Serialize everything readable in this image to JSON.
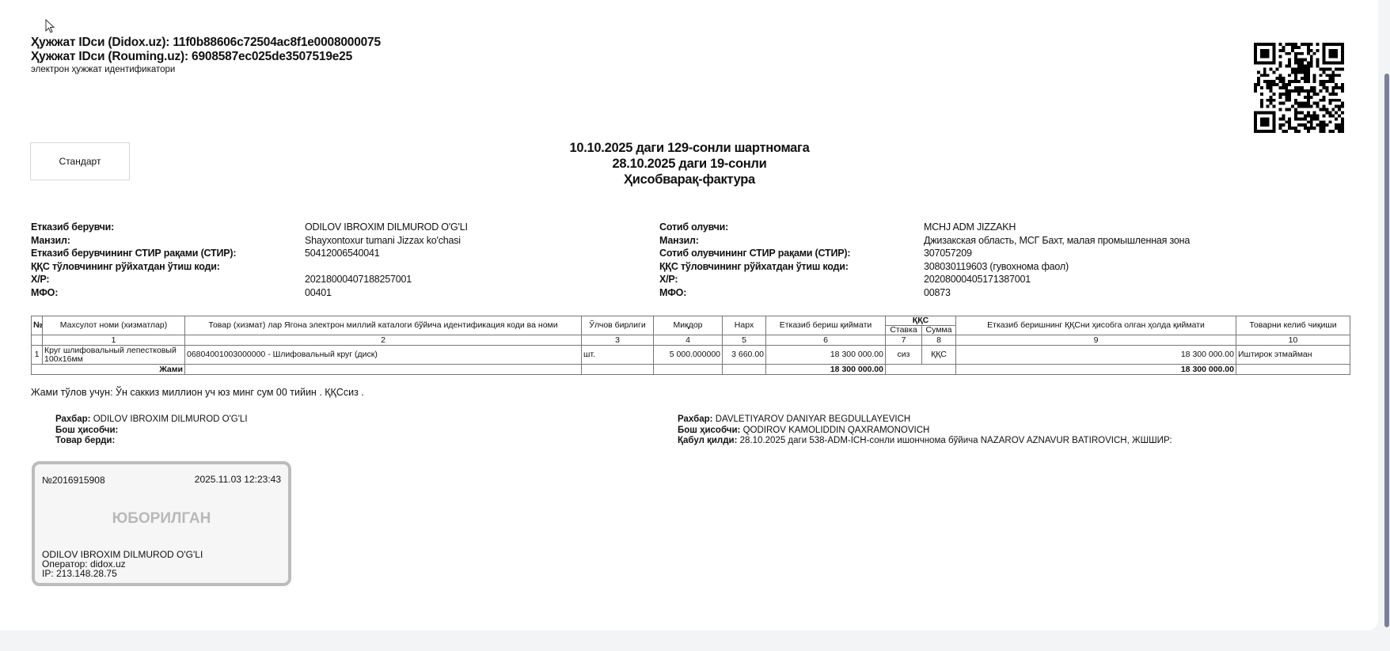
{
  "header": {
    "didox_id": "Ҳужжат IDси (Didox.uz): 11f0b88606c72504ac8f1e0008000075",
    "rouming_id": "Ҳужжат IDси (Rouming.uz): 6908587ec025de3507519e25",
    "subtitle": "электрон ҳужжат идентификатори"
  },
  "standard_button": "Стандарт",
  "title": {
    "line1": "10.10.2025 даги 129-сонли шартномага",
    "line2": "28.10.2025 даги 19-сонли",
    "line3": "Ҳисобварақ-фактура"
  },
  "seller": {
    "rows": [
      {
        "label": "Етказиб берувчи:",
        "value": "ODILOV IBROXIM DILMUROD O'G'LI"
      },
      {
        "label": "Манзил:",
        "value": "Shayxontoxur tumani Jizzax ko'chasi"
      },
      {
        "label": "Етказиб берувчининг СТИР рақами  (СТИР):",
        "value": "50412006540041"
      },
      {
        "label": "ҚҚС тўловчининг рўйхатдан ўтиш коди:",
        "value": ""
      },
      {
        "label": "Х/Р:",
        "value": "20218000407188257001"
      },
      {
        "label": "МФО:",
        "value": "00401"
      }
    ]
  },
  "buyer": {
    "rows": [
      {
        "label": "Сотиб олувчи:",
        "value": "MCHJ ADM JIZZAKH"
      },
      {
        "label": "Манзил:",
        "value": "Джизакская область, МСГ Бахт, малая промышленная зона"
      },
      {
        "label": "Сотиб олувчининг СТИР рақами (СТИР):",
        "value": "307057209"
      },
      {
        "label": "ҚҚС тўловчининг рўйхатдан ўтиш коди:",
        "value": "308030119603 (гувохнома фаол)"
      },
      {
        "label": "Х/Р:",
        "value": "20208000405171387001"
      },
      {
        "label": "МФО:",
        "value": "00873"
      }
    ]
  },
  "table": {
    "headers": {
      "no": "№",
      "name": "Махсулот номи (хизматлар)",
      "catalog": "Товар (хизмат) лар Ягона электрон миллий каталоги бўйича идентификация коди ва номи",
      "unit": "Ўлчов бирлиги",
      "qty": "Миқдор",
      "price": "Нарх",
      "cost": "Етказиб бериш қиймати",
      "vat": "ҚҚС",
      "vat_rate": "Ставка",
      "vat_sum": "Сумма",
      "cost_vat": "Етказиб беришнинг ҚҚСни ҳисобга олган ҳолда қиймати",
      "origin": "Товарни келиб чиқиши"
    },
    "column_numbers": [
      "1",
      "2",
      "3",
      "4",
      "5",
      "6",
      "7",
      "8",
      "9",
      "10"
    ],
    "rows": [
      {
        "no": "1",
        "name": "Круг шлифовальный лепестковый 100х16мм",
        "catalog": "06804001003000000 - Шлифовальный круг (диск)",
        "unit": "шт.",
        "qty": "5 000.000000",
        "price": "3 660.00",
        "cost": "18 300 000.00",
        "vat_rate": "сиз",
        "vat_sum": "ҚҚС",
        "cost_vat": "18 300 000.00",
        "origin": "Иштирок этмайман"
      }
    ],
    "total": {
      "label": "Жами",
      "cost": "18 300 000.00",
      "cost_vat": "18 300 000.00"
    }
  },
  "total_words": "Жами тўлов учун: Ўн саккиз миллион уч юз минг сум 00 тийин . ҚҚСсиз .",
  "signatures_left": {
    "head_label": "Рахбар:",
    "head": "ODILOV IBROXIM DILMUROD O'G'LI",
    "accountant_label": "Бош ҳисобчи:",
    "accountant": "",
    "released_label": "Товар берди:",
    "released": ""
  },
  "signatures_right": {
    "head_label": "Рахбар:",
    "head": "DAVLETIYAROV DANIYAR BEGDULLAYEVICH",
    "accountant_label": "Бош ҳисобчи:",
    "accountant": "QODIROV KAMOLIDDIN QAXRAMONOVICH",
    "received_label": "Қабул қилди:",
    "received": "28.10.2025 даги 538-ADM-ICH-сонли ишончнома бўйича NAZAROV AZNAVUR BATIROVICH, ЖШШИР:"
  },
  "stamp": {
    "number": "№2016915908",
    "datetime": "2025.11.03 12:23:43",
    "status": "ЮБОРИЛГАН",
    "name": "ODILOV IBROXIM DILMUROD O'G'LI",
    "operator": "Оператор: didox.uz",
    "ip": "IP: 213.148.28.75"
  }
}
